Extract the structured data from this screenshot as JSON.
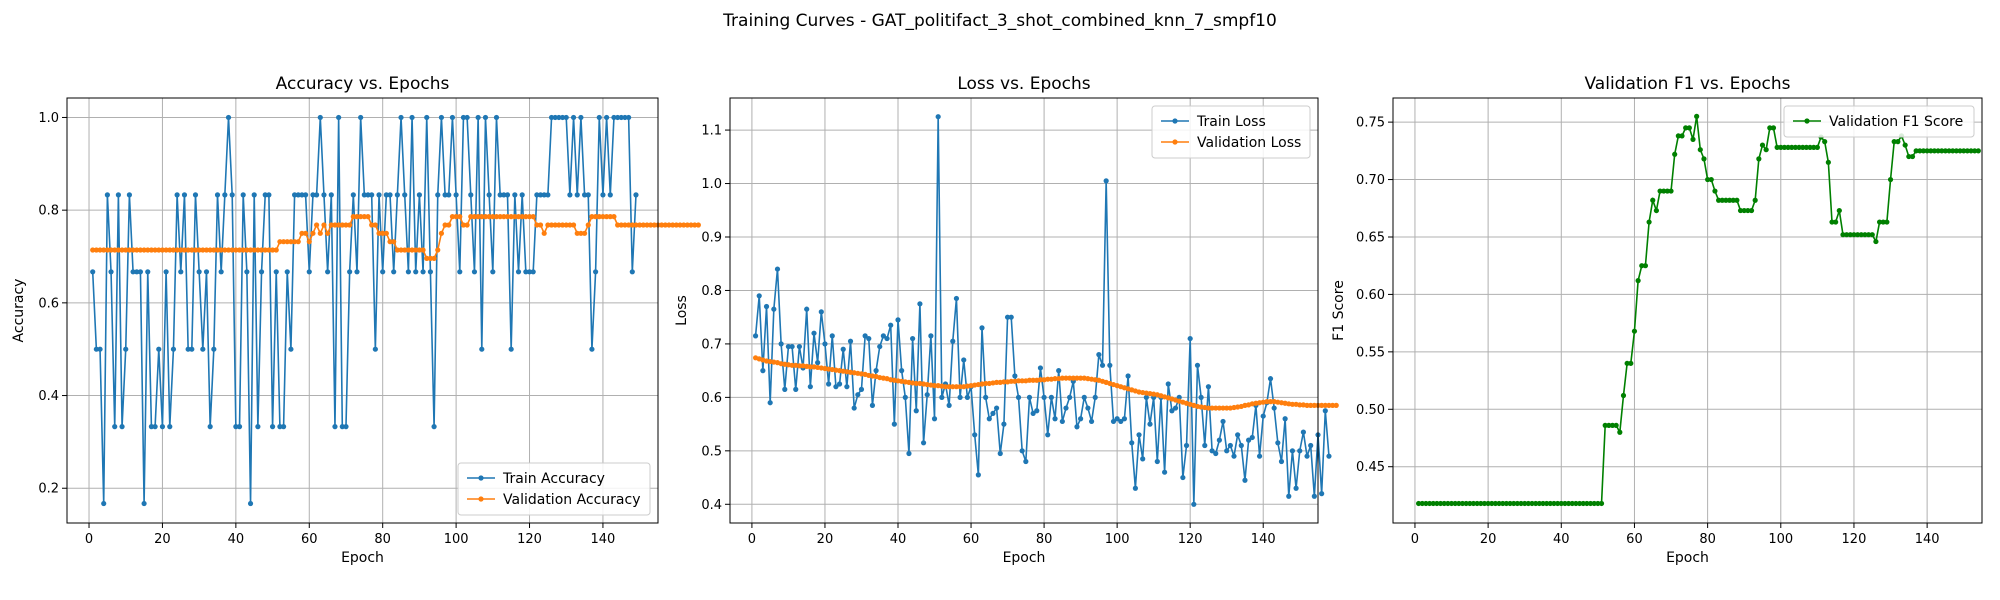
{
  "figure_title": "Training Curves - GAT_politifact_3_shot_combined_knn_7_smpf10",
  "chart_data": [
    {
      "type": "line",
      "title": "Accuracy vs. Epochs",
      "xlabel": "Epoch",
      "ylabel": "Accuracy",
      "xlim": [
        -6,
        155
      ],
      "ylim": [
        0.125,
        1.042
      ],
      "xticks": [
        0,
        20,
        40,
        60,
        80,
        100,
        120,
        140
      ],
      "yticks": [
        0.2,
        0.4,
        0.6,
        0.8,
        1.0
      ],
      "ytick_labels": [
        "0.2",
        "0.4",
        "0.6",
        "0.8",
        "1.0"
      ],
      "grid": true,
      "legend": "lower-right",
      "series": [
        {
          "name": "Train Accuracy",
          "color": "#1f77b4",
          "values": [
            0.667,
            0.5,
            0.5,
            0.167,
            0.833,
            0.667,
            0.333,
            0.833,
            0.333,
            0.5,
            0.833,
            0.667,
            0.667,
            0.667,
            0.167,
            0.667,
            0.333,
            0.333,
            0.5,
            0.333,
            0.667,
            0.333,
            0.5,
            0.833,
            0.667,
            0.833,
            0.5,
            0.5,
            0.833,
            0.667,
            0.5,
            0.667,
            0.333,
            0.5,
            0.833,
            0.667,
            0.833,
            1.0,
            0.833,
            0.333,
            0.333,
            0.833,
            0.667,
            0.167,
            0.833,
            0.333,
            0.667,
            0.833,
            0.833,
            0.333,
            0.667,
            0.333,
            0.333,
            0.667,
            0.5,
            0.833,
            0.833,
            0.833,
            0.833,
            0.667,
            0.833,
            0.833,
            1.0,
            0.833,
            0.667,
            0.833,
            0.333,
            1.0,
            0.333,
            0.333,
            0.667,
            0.833,
            0.667,
            1.0,
            0.833,
            0.833,
            0.833,
            0.5,
            0.833,
            0.667,
            0.833,
            0.833,
            0.667,
            0.833,
            1.0,
            0.833,
            0.667,
            1.0,
            0.667,
            0.833,
            0.667,
            1.0,
            0.667,
            0.333,
            0.833,
            1.0,
            0.833,
            0.833,
            1.0,
            0.833,
            0.667,
            1.0,
            1.0,
            0.833,
            0.667,
            1.0,
            0.5,
            1.0,
            0.833,
            0.667,
            1.0,
            0.833,
            0.833,
            0.833,
            0.5,
            0.833,
            0.667,
            0.833,
            0.667,
            0.667,
            0.667,
            0.833,
            0.833,
            0.833,
            0.833,
            1.0,
            1.0,
            1.0,
            1.0,
            1.0,
            0.833,
            1.0,
            0.833,
            1.0,
            0.833,
            0.833,
            0.5,
            0.667,
            1.0,
            0.833,
            1.0,
            0.833,
            1.0,
            1.0,
            1.0,
            1.0,
            1.0,
            0.667,
            0.833
          ]
        },
        {
          "name": "Validation Accuracy",
          "color": "#ff7f0e",
          "values": [
            0.714,
            0.714,
            0.714,
            0.714,
            0.714,
            0.714,
            0.714,
            0.714,
            0.714,
            0.714,
            0.714,
            0.714,
            0.714,
            0.714,
            0.714,
            0.714,
            0.714,
            0.714,
            0.714,
            0.714,
            0.714,
            0.714,
            0.714,
            0.714,
            0.714,
            0.714,
            0.714,
            0.714,
            0.714,
            0.714,
            0.714,
            0.714,
            0.714,
            0.714,
            0.714,
            0.714,
            0.714,
            0.714,
            0.714,
            0.714,
            0.714,
            0.714,
            0.714,
            0.714,
            0.714,
            0.714,
            0.714,
            0.714,
            0.714,
            0.714,
            0.714,
            0.732,
            0.732,
            0.732,
            0.732,
            0.732,
            0.732,
            0.75,
            0.75,
            0.732,
            0.75,
            0.768,
            0.75,
            0.768,
            0.75,
            0.768,
            0.768,
            0.768,
            0.768,
            0.768,
            0.768,
            0.786,
            0.786,
            0.786,
            0.786,
            0.786,
            0.768,
            0.768,
            0.75,
            0.75,
            0.75,
            0.732,
            0.732,
            0.714,
            0.714,
            0.714,
            0.714,
            0.714,
            0.714,
            0.714,
            0.714,
            0.696,
            0.696,
            0.696,
            0.714,
            0.75,
            0.768,
            0.768,
            0.786,
            0.786,
            0.786,
            0.768,
            0.768,
            0.786,
            0.786,
            0.786,
            0.786,
            0.786,
            0.786,
            0.786,
            0.786,
            0.786,
            0.786,
            0.786,
            0.786,
            0.786,
            0.786,
            0.786,
            0.786,
            0.786,
            0.786,
            0.768,
            0.768,
            0.75,
            0.768,
            0.768,
            0.768,
            0.768,
            0.768,
            0.768,
            0.768,
            0.768,
            0.75,
            0.75,
            0.75,
            0.768,
            0.786,
            0.786,
            0.786,
            0.786,
            0.786,
            0.786,
            0.786,
            0.768,
            0.768,
            0.768,
            0.768,
            0.768,
            0.768,
            0.768,
            0.768,
            0.768,
            0.768,
            0.768,
            0.768,
            0.768,
            0.768,
            0.768,
            0.768,
            0.768,
            0.768,
            0.768,
            0.768,
            0.768,
            0.768,
            0.768
          ]
        }
      ]
    },
    {
      "type": "line",
      "title": "Loss vs. Epochs",
      "xlabel": "Epoch",
      "ylabel": "Loss",
      "xlim": [
        -6,
        155
      ],
      "ylim": [
        0.365,
        1.16
      ],
      "xticks": [
        0,
        20,
        40,
        60,
        80,
        100,
        120,
        140
      ],
      "yticks": [
        0.4,
        0.5,
        0.6,
        0.7,
        0.8,
        0.9,
        1.0,
        1.1
      ],
      "ytick_labels": [
        "0.4",
        "0.5",
        "0.6",
        "0.7",
        "0.8",
        "0.9",
        "1.0",
        "1.1"
      ],
      "grid": true,
      "legend": "upper-right",
      "series": [
        {
          "name": "Train Loss",
          "color": "#1f77b4",
          "values": [
            0.715,
            0.79,
            0.65,
            0.77,
            0.59,
            0.765,
            0.84,
            0.7,
            0.615,
            0.695,
            0.695,
            0.615,
            0.695,
            0.655,
            0.765,
            0.62,
            0.72,
            0.665,
            0.76,
            0.7,
            0.625,
            0.715,
            0.62,
            0.625,
            0.69,
            0.62,
            0.705,
            0.58,
            0.605,
            0.615,
            0.715,
            0.71,
            0.585,
            0.65,
            0.695,
            0.715,
            0.71,
            0.735,
            0.55,
            0.745,
            0.65,
            0.6,
            0.495,
            0.71,
            0.575,
            0.775,
            0.515,
            0.605,
            0.715,
            0.56,
            1.125,
            0.6,
            0.625,
            0.585,
            0.705,
            0.785,
            0.6,
            0.67,
            0.6,
            0.62,
            0.53,
            0.455,
            0.73,
            0.6,
            0.56,
            0.57,
            0.58,
            0.495,
            0.55,
            0.75,
            0.75,
            0.64,
            0.6,
            0.5,
            0.48,
            0.6,
            0.57,
            0.575,
            0.655,
            0.6,
            0.53,
            0.6,
            0.56,
            0.65,
            0.555,
            0.58,
            0.6,
            0.63,
            0.545,
            0.56,
            0.6,
            0.58,
            0.555,
            0.6,
            0.68,
            0.66,
            1.005,
            0.66,
            0.555,
            0.56,
            0.555,
            0.56,
            0.64,
            0.515,
            0.43,
            0.53,
            0.485,
            0.6,
            0.55,
            0.6,
            0.48,
            0.6,
            0.46,
            0.625,
            0.575,
            0.58,
            0.6,
            0.45,
            0.51,
            0.71,
            0.4,
            0.66,
            0.6,
            0.51,
            0.62,
            0.5,
            0.495,
            0.52,
            0.555,
            0.5,
            0.51,
            0.49,
            0.53,
            0.51,
            0.445,
            0.52,
            0.525,
            0.585,
            0.49,
            0.565,
            0.59,
            0.635,
            0.58,
            0.515,
            0.48,
            0.56,
            0.415,
            0.5,
            0.43,
            0.5,
            0.535,
            0.49,
            0.51,
            0.415,
            0.53,
            0.42,
            0.575,
            0.49
          ]
        },
        {
          "name": "Validation Loss",
          "color": "#ff7f0e",
          "values": [
            0.674,
            0.672,
            0.67,
            0.668,
            0.667,
            0.666,
            0.665,
            0.663,
            0.662,
            0.661,
            0.66,
            0.66,
            0.659,
            0.659,
            0.658,
            0.657,
            0.657,
            0.656,
            0.655,
            0.654,
            0.653,
            0.652,
            0.651,
            0.65,
            0.649,
            0.648,
            0.647,
            0.646,
            0.645,
            0.644,
            0.643,
            0.641,
            0.64,
            0.639,
            0.637,
            0.636,
            0.635,
            0.633,
            0.632,
            0.631,
            0.63,
            0.629,
            0.628,
            0.627,
            0.626,
            0.626,
            0.625,
            0.624,
            0.623,
            0.622,
            0.622,
            0.621,
            0.62,
            0.62,
            0.62,
            0.62,
            0.62,
            0.62,
            0.621,
            0.622,
            0.623,
            0.624,
            0.625,
            0.626,
            0.626,
            0.627,
            0.628,
            0.628,
            0.629,
            0.629,
            0.63,
            0.63,
            0.631,
            0.631,
            0.631,
            0.632,
            0.632,
            0.632,
            0.633,
            0.633,
            0.634,
            0.634,
            0.635,
            0.635,
            0.636,
            0.636,
            0.636,
            0.636,
            0.636,
            0.636,
            0.636,
            0.635,
            0.634,
            0.633,
            0.632,
            0.63,
            0.628,
            0.626,
            0.624,
            0.622,
            0.62,
            0.618,
            0.616,
            0.614,
            0.612,
            0.61,
            0.609,
            0.608,
            0.607,
            0.606,
            0.605,
            0.603,
            0.601,
            0.599,
            0.597,
            0.595,
            0.593,
            0.591,
            0.589,
            0.587,
            0.585,
            0.583,
            0.582,
            0.581,
            0.58,
            0.58,
            0.58,
            0.58,
            0.58,
            0.58,
            0.58,
            0.581,
            0.582,
            0.583,
            0.585,
            0.586,
            0.588,
            0.589,
            0.59,
            0.591,
            0.592,
            0.592,
            0.592,
            0.591,
            0.59,
            0.589,
            0.588,
            0.587,
            0.587,
            0.586,
            0.586,
            0.585,
            0.585,
            0.585,
            0.585,
            0.585,
            0.585,
            0.585,
            0.585,
            0.585
          ]
        }
      ]
    },
    {
      "type": "line",
      "title": "Validation F1 vs. Epochs",
      "xlabel": "Epoch",
      "ylabel": "F1 Score",
      "xlim": [
        -6,
        155
      ],
      "ylim": [
        0.401,
        0.771
      ],
      "xticks": [
        0,
        20,
        40,
        60,
        80,
        100,
        120,
        140
      ],
      "yticks": [
        0.45,
        0.5,
        0.55,
        0.6,
        0.65,
        0.7,
        0.75
      ],
      "ytick_labels": [
        "0.45",
        "0.50",
        "0.55",
        "0.60",
        "0.65",
        "0.70",
        "0.75"
      ],
      "grid": true,
      "legend": "upper-right",
      "series": [
        {
          "name": "Validation F1 Score",
          "color": "#008000",
          "values": [
            0.418,
            0.418,
            0.418,
            0.418,
            0.418,
            0.418,
            0.418,
            0.418,
            0.418,
            0.418,
            0.418,
            0.418,
            0.418,
            0.418,
            0.418,
            0.418,
            0.418,
            0.418,
            0.418,
            0.418,
            0.418,
            0.418,
            0.418,
            0.418,
            0.418,
            0.418,
            0.418,
            0.418,
            0.418,
            0.418,
            0.418,
            0.418,
            0.418,
            0.418,
            0.418,
            0.418,
            0.418,
            0.418,
            0.418,
            0.418,
            0.418,
            0.418,
            0.418,
            0.418,
            0.418,
            0.418,
            0.418,
            0.418,
            0.418,
            0.418,
            0.418,
            0.486,
            0.486,
            0.486,
            0.486,
            0.48,
            0.512,
            0.54,
            0.54,
            0.568,
            0.612,
            0.625,
            0.625,
            0.663,
            0.682,
            0.673,
            0.69,
            0.69,
            0.69,
            0.69,
            0.722,
            0.738,
            0.738,
            0.745,
            0.745,
            0.735,
            0.755,
            0.726,
            0.718,
            0.7,
            0.7,
            0.69,
            0.682,
            0.682,
            0.682,
            0.682,
            0.682,
            0.682,
            0.673,
            0.673,
            0.673,
            0.673,
            0.682,
            0.718,
            0.73,
            0.726,
            0.745,
            0.745,
            0.728,
            0.728,
            0.728,
            0.728,
            0.728,
            0.728,
            0.728,
            0.728,
            0.728,
            0.728,
            0.728,
            0.728,
            0.737,
            0.733,
            0.715,
            0.663,
            0.663,
            0.673,
            0.652,
            0.652,
            0.652,
            0.652,
            0.652,
            0.652,
            0.652,
            0.652,
            0.652,
            0.646,
            0.663,
            0.663,
            0.663,
            0.7,
            0.733,
            0.733,
            0.738,
            0.73,
            0.72,
            0.72,
            0.725,
            0.725,
            0.725,
            0.725,
            0.725,
            0.725,
            0.725,
            0.725,
            0.725,
            0.725,
            0.725,
            0.725,
            0.725,
            0.725,
            0.725,
            0.725,
            0.725,
            0.725
          ]
        }
      ]
    }
  ]
}
